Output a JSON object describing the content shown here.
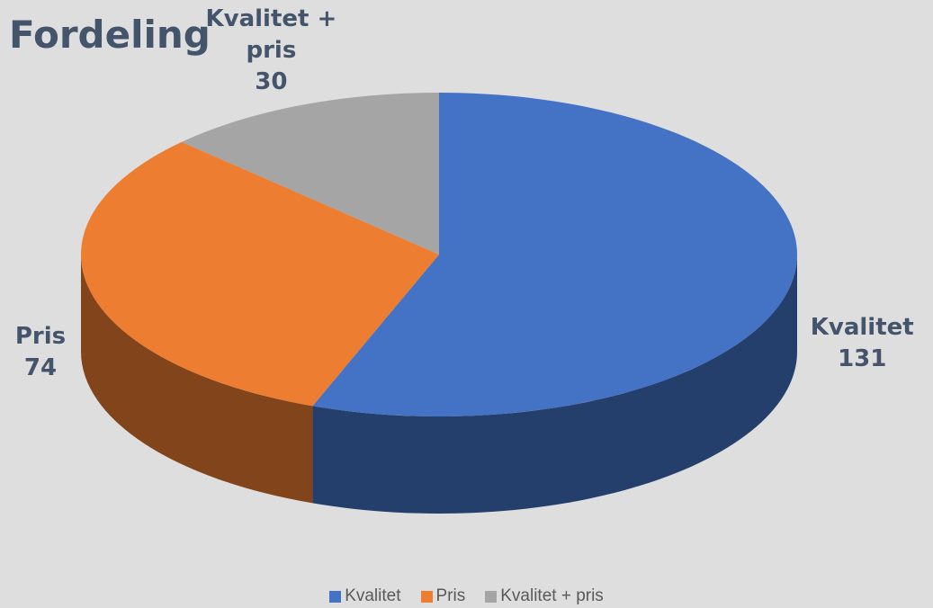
{
  "chart_data": {
    "type": "pie",
    "title": "Fordeling",
    "categories": [
      "Kvalitet",
      "Pris",
      "Kvalitet + pris"
    ],
    "values": [
      131,
      74,
      30
    ],
    "colors": [
      "#4472c4",
      "#ed7d31",
      "#a5a5a5"
    ]
  }
}
